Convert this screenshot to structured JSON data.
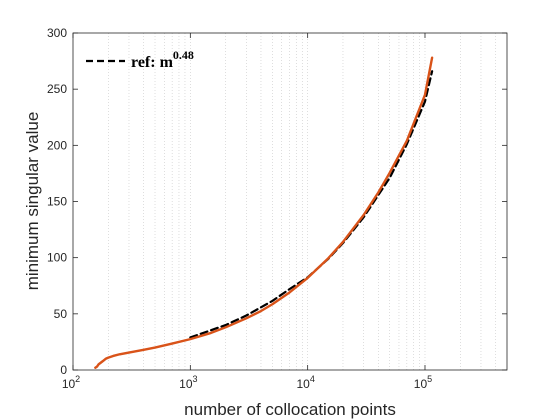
{
  "chart_data": {
    "type": "line",
    "xlabel": "number of collocation points",
    "ylabel": "minimum singular value",
    "x_scale": "log",
    "xlim": [
      100,
      500000
    ],
    "ylim": [
      0,
      300
    ],
    "grid": "x-minor-dotted",
    "legend_placement": "top-left",
    "x_ticks": [
      {
        "value": 100,
        "base": "10",
        "exp": "2"
      },
      {
        "value": 1000,
        "base": "10",
        "exp": "3"
      },
      {
        "value": 10000,
        "base": "10",
        "exp": "4"
      },
      {
        "value": 100000,
        "base": "10",
        "exp": "5"
      }
    ],
    "y_ticks": [
      {
        "value": 0,
        "label": "0"
      },
      {
        "value": 50,
        "label": "50"
      },
      {
        "value": 100,
        "label": "100"
      },
      {
        "value": 150,
        "label": "150"
      },
      {
        "value": 200,
        "label": "200"
      },
      {
        "value": 250,
        "label": "250"
      },
      {
        "value": 300,
        "label": "300"
      }
    ],
    "series": [
      {
        "name": "",
        "color": "#d95319",
        "style": "solid",
        "x": [
          155,
          160,
          165,
          170,
          180,
          190,
          200,
          220,
          250,
          300,
          400,
          500,
          700,
          1000,
          1500,
          2000,
          3000,
          4000,
          5000,
          7000,
          10000,
          15000,
          20000,
          30000,
          40000,
          50000,
          70000,
          100000,
          115000
        ],
        "y": [
          2,
          3,
          5,
          6,
          8,
          10,
          11,
          12.5,
          14,
          15.5,
          18,
          20,
          23.5,
          27.5,
          33,
          38,
          46,
          52.5,
          58.5,
          69,
          82,
          99.5,
          114,
          138,
          158,
          175.5,
          204,
          245,
          278
        ]
      },
      {
        "name": "ref: m",
        "name_exponent": "0.48",
        "color": "#000000",
        "style": "dashed",
        "x": [
          1000,
          2000,
          3000,
          5000,
          7000,
          10000,
          15000,
          20000,
          30000,
          50000,
          70000,
          100000,
          115000
        ],
        "y": [
          29,
          40,
          48.5,
          61.5,
          72,
          82.5,
          99,
          113,
          136,
          171,
          201,
          239,
          266
        ]
      }
    ]
  }
}
